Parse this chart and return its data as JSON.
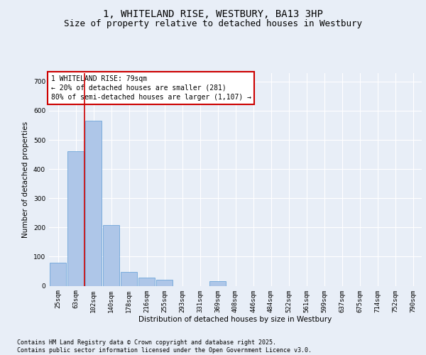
{
  "title_line1": "1, WHITELAND RISE, WESTBURY, BA13 3HP",
  "title_line2": "Size of property relative to detached houses in Westbury",
  "xlabel": "Distribution of detached houses by size in Westbury",
  "ylabel": "Number of detached properties",
  "categories": [
    "25sqm",
    "63sqm",
    "102sqm",
    "140sqm",
    "178sqm",
    "216sqm",
    "255sqm",
    "293sqm",
    "331sqm",
    "369sqm",
    "408sqm",
    "446sqm",
    "484sqm",
    "522sqm",
    "561sqm",
    "599sqm",
    "637sqm",
    "675sqm",
    "714sqm",
    "752sqm",
    "790sqm"
  ],
  "values": [
    80,
    460,
    565,
    207,
    47,
    27,
    20,
    0,
    0,
    15,
    0,
    0,
    0,
    0,
    0,
    0,
    0,
    0,
    0,
    0,
    0
  ],
  "bar_color": "#aec6e8",
  "bar_edge_color": "#5b9bd5",
  "vline_x": 1.5,
  "vline_color": "#cc0000",
  "ylim": [
    0,
    730
  ],
  "yticks": [
    0,
    100,
    200,
    300,
    400,
    500,
    600,
    700
  ],
  "annotation_text": "1 WHITELAND RISE: 79sqm\n← 20% of detached houses are smaller (281)\n80% of semi-detached houses are larger (1,107) →",
  "annotation_box_color": "#cc0000",
  "footnote": "Contains HM Land Registry data © Crown copyright and database right 2025.\nContains public sector information licensed under the Open Government Licence v3.0.",
  "bg_color": "#e8eef7",
  "plot_bg_color": "#e8eef7",
  "grid_color": "#ffffff",
  "title_fontsize": 10,
  "subtitle_fontsize": 9,
  "label_fontsize": 7.5,
  "tick_fontsize": 6.5,
  "footnote_fontsize": 6,
  "annot_fontsize": 7
}
